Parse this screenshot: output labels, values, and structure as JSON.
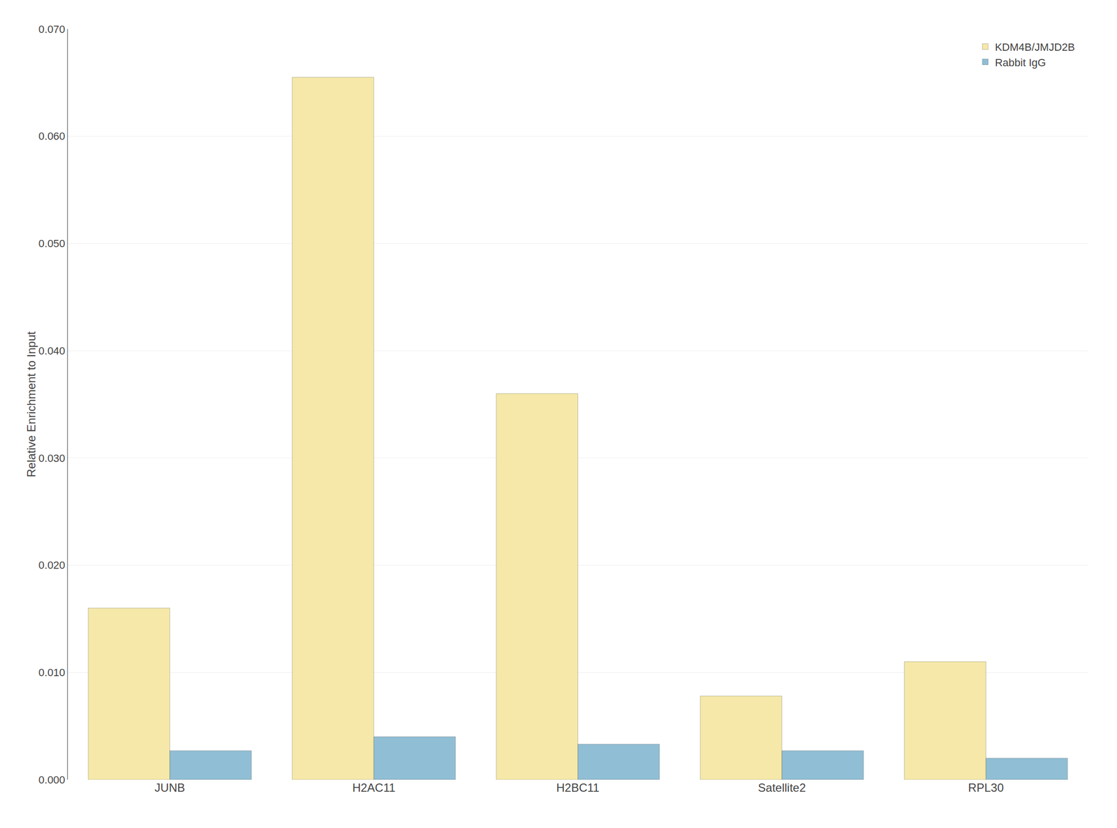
{
  "chart_data": {
    "type": "bar",
    "categories": [
      "JUNB",
      "H2AC11",
      "H2BC11",
      "Satellite2",
      "RPL30"
    ],
    "series": [
      {
        "name": "KDM4B/JMJD2B",
        "color": "#F5E8A8",
        "values": [
          0.016,
          0.0655,
          0.036,
          0.0078,
          0.011
        ]
      },
      {
        "name": "Rabbit IgG",
        "color": "#90BED4",
        "values": [
          0.0027,
          0.004,
          0.0033,
          0.0027,
          0.002
        ]
      }
    ],
    "ylabel": "Relative Enrichment to Input",
    "ylim": [
      0,
      0.07
    ],
    "yticks": [
      {
        "value": 0.0,
        "label": "0.000"
      },
      {
        "value": 0.01,
        "label": "0.010"
      },
      {
        "value": 0.02,
        "label": "0.020"
      },
      {
        "value": 0.03,
        "label": "0.030"
      },
      {
        "value": 0.04,
        "label": "0.040"
      },
      {
        "value": 0.05,
        "label": "0.050"
      },
      {
        "value": 0.06,
        "label": "0.060"
      },
      {
        "value": 0.07,
        "label": "0.070"
      }
    ],
    "grid": true,
    "legend": "upper right"
  }
}
